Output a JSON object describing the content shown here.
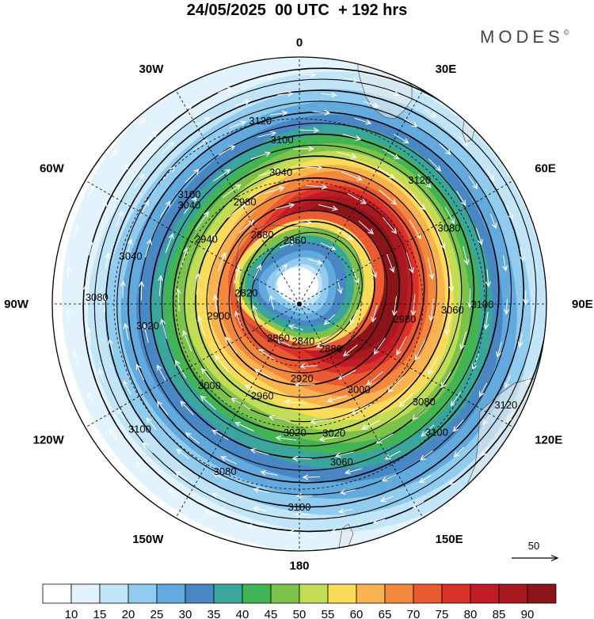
{
  "header": {
    "title": "24/05/2025  00 UTC  + 192 hrs",
    "brand": "MODES",
    "brand_mark": "©"
  },
  "map": {
    "projection": "south-polar-stereographic",
    "center": "South Pole",
    "longitude_labels": [
      {
        "text": "0",
        "lon": 0
      },
      {
        "text": "30E",
        "lon": 30
      },
      {
        "text": "60E",
        "lon": 60
      },
      {
        "text": "90E",
        "lon": 90
      },
      {
        "text": "120E",
        "lon": 120
      },
      {
        "text": "150E",
        "lon": 150
      },
      {
        "text": "180",
        "lon": 180
      },
      {
        "text": "150W",
        "lon": -150
      },
      {
        "text": "120W",
        "lon": -120
      },
      {
        "text": "90W",
        "lon": -90
      },
      {
        "text": "60W",
        "lon": -60
      },
      {
        "text": "30W",
        "lon": -30
      }
    ],
    "height_contours": [
      "3120",
      "3100",
      "3080",
      "3060",
      "3040",
      "3020",
      "3000",
      "2980",
      "2960",
      "2940",
      "2920",
      "2900",
      "2880",
      "2860",
      "2840",
      "2820"
    ],
    "height_labels": [
      {
        "text": "3120",
        "lon": -12,
        "r": 0.76
      },
      {
        "text": "3100",
        "lon": -6,
        "r": 0.67
      },
      {
        "text": "3120",
        "lon": 44,
        "r": 0.7
      },
      {
        "text": "3100",
        "lon": -45,
        "r": 0.63
      },
      {
        "text": "3040",
        "lon": -8,
        "r": 0.54
      },
      {
        "text": "2980",
        "lon": -28,
        "r": 0.47
      },
      {
        "text": "3040",
        "lon": -48,
        "r": 0.6
      },
      {
        "text": "2940",
        "lon": -55,
        "r": 0.46
      },
      {
        "text": "2880",
        "lon": -28,
        "r": 0.32
      },
      {
        "text": "2860",
        "lon": -4,
        "r": 0.26
      },
      {
        "text": "3080",
        "lon": 63,
        "r": 0.68
      },
      {
        "text": "3040",
        "lon": -74,
        "r": 0.71
      },
      {
        "text": "3080",
        "lon": -88,
        "r": 0.82
      },
      {
        "text": "3020",
        "lon": -98,
        "r": 0.62
      },
      {
        "text": "2900",
        "lon": -98,
        "r": 0.33
      },
      {
        "text": "2820",
        "lon": -78,
        "r": 0.22
      },
      {
        "text": "2860",
        "lon": -148,
        "r": 0.16
      },
      {
        "text": "2840",
        "lon": 174,
        "r": 0.15
      },
      {
        "text": "2880",
        "lon": 145,
        "r": 0.22
      },
      {
        "text": "2980",
        "lon": 98,
        "r": 0.43
      },
      {
        "text": "3060",
        "lon": 92,
        "r": 0.62
      },
      {
        "text": "3100",
        "lon": 90,
        "r": 0.74
      },
      {
        "text": "3000",
        "lon": -132,
        "r": 0.49
      },
      {
        "text": "2920",
        "lon": 178,
        "r": 0.3
      },
      {
        "text": "2960",
        "lon": -158,
        "r": 0.4
      },
      {
        "text": "3000",
        "lon": 145,
        "r": 0.42
      },
      {
        "text": "3020",
        "lon": -178,
        "r": 0.52
      },
      {
        "text": "3020",
        "lon": 165,
        "r": 0.54
      },
      {
        "text": "3100",
        "lon": -128,
        "r": 0.82
      },
      {
        "text": "3080",
        "lon": -156,
        "r": 0.74
      },
      {
        "text": "3060",
        "lon": 165,
        "r": 0.66
      },
      {
        "text": "3080",
        "lon": 128,
        "r": 0.64
      },
      {
        "text": "3100",
        "lon": 133,
        "r": 0.76
      },
      {
        "text": "3120",
        "lon": 116,
        "r": 0.93
      },
      {
        "text": "3100",
        "lon": 180,
        "r": 0.82
      }
    ],
    "wind_reference": {
      "label": "50"
    }
  },
  "colorbar": {
    "ticks": [
      "10",
      "15",
      "20",
      "25",
      "30",
      "35",
      "40",
      "45",
      "50",
      "55",
      "60",
      "65",
      "70",
      "75",
      "80",
      "85",
      "90"
    ],
    "colors": [
      "#ffffff",
      "#e2f3fb",
      "#c2e6f8",
      "#91ccee",
      "#62a9de",
      "#4887c4",
      "#3aa59a",
      "#43b454",
      "#7cc24b",
      "#c3dc56",
      "#fadc5a",
      "#f8b24f",
      "#f2873e",
      "#ea5a33",
      "#da3229",
      "#c01c27",
      "#a8191f",
      "#8b1419"
    ]
  }
}
